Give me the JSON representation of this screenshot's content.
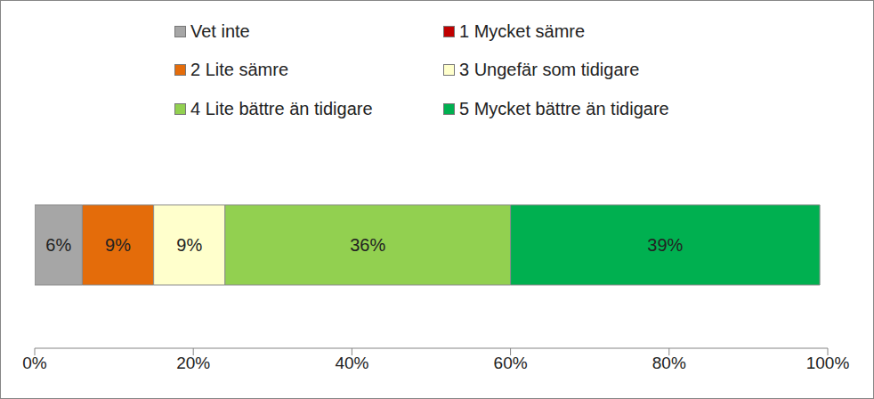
{
  "chart_data": {
    "type": "bar",
    "orientation": "horizontal",
    "stacked": true,
    "data_labels": true,
    "grid": false,
    "legend": "top",
    "tick_labels": "x",
    "categories": [
      null
    ],
    "xlim": [
      0,
      100
    ],
    "xticks": [
      {
        "value": 0,
        "label": "0%"
      },
      {
        "value": 20,
        "label": "20%"
      },
      {
        "value": 40,
        "label": "40%"
      },
      {
        "value": 60,
        "label": "60%"
      },
      {
        "value": 80,
        "label": "80%"
      },
      {
        "value": 100,
        "label": "100%"
      }
    ],
    "series": [
      {
        "name": "Vet inte",
        "color": "#a6a6a6",
        "values": [
          6
        ],
        "value_labels": [
          "6%"
        ]
      },
      {
        "name": "1 Mycket sämre",
        "color": "#c00000",
        "values": [
          0
        ],
        "value_labels": [
          null
        ]
      },
      {
        "name": "2 Lite sämre",
        "color": "#e46c0a",
        "values": [
          9
        ],
        "value_labels": [
          "9%"
        ]
      },
      {
        "name": "3 Ungefär som tidigare",
        "color": "#ffffcc",
        "values": [
          9
        ],
        "value_labels": [
          "9%"
        ]
      },
      {
        "name": "4 Lite bättre än tidigare",
        "color": "#92d050",
        "values": [
          36
        ],
        "value_labels": [
          "36%"
        ]
      },
      {
        "name": "5 Mycket bättre än tidigare",
        "color": "#00b050",
        "values": [
          39
        ],
        "value_labels": [
          "39%"
        ]
      }
    ]
  }
}
